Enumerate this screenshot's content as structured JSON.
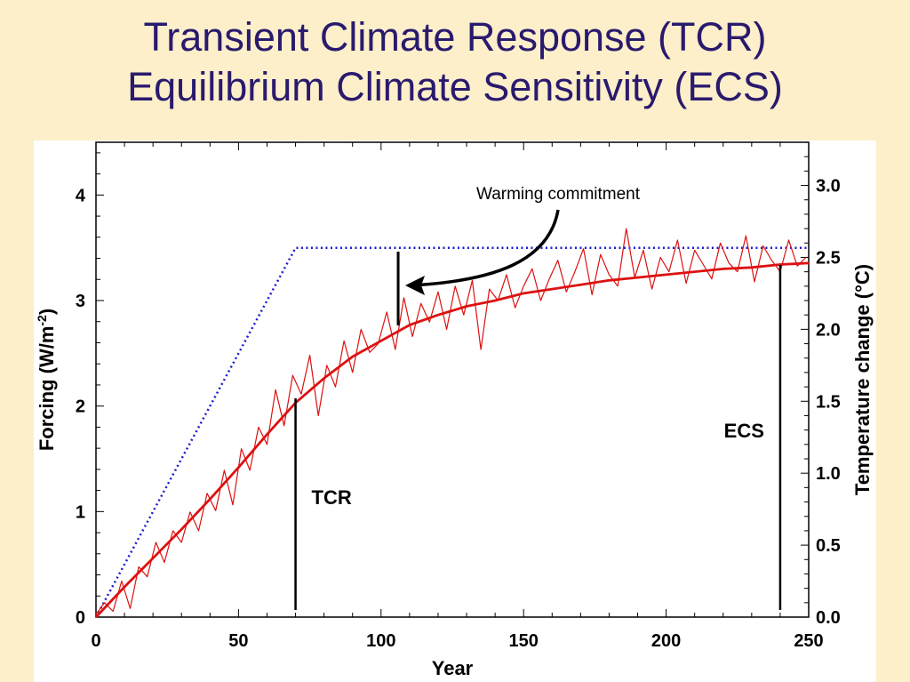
{
  "slide": {
    "title_line1": "Transient Climate Response (TCR)",
    "title_line2": "Equilibrium Climate Sensitivity (ECS)"
  },
  "chart_data": {
    "type": "line",
    "xlabel": "Year",
    "ylabel_left": "Forcing (W/m",
    "ylabel_left_sup": "-2",
    "ylabel_left_end": ")",
    "ylabel_right": "Temperature change (°C)",
    "xlim": [
      0,
      250
    ],
    "ylim_left": [
      0,
      4.5
    ],
    "ylim_right": [
      0,
      3.3
    ],
    "x_ticks": [
      "0",
      "50",
      "100",
      "150",
      "200",
      "250"
    ],
    "y_left_ticks": [
      "0",
      "1",
      "2",
      "3",
      "4"
    ],
    "y_right_ticks": [
      "0.0",
      "0.5",
      "1.0",
      "1.5",
      "2.0",
      "2.5",
      "3.0"
    ],
    "grid": false,
    "series": [
      {
        "style": "dotted",
        "color": "#1a1acc",
        "axis": "left",
        "x": [
          0,
          70,
          250
        ],
        "y": [
          0,
          3.5,
          3.5
        ]
      },
      {
        "style": "solid-thick",
        "color": "#dd1111",
        "axis": "right",
        "x": [
          0,
          10,
          20,
          30,
          40,
          50,
          60,
          70,
          80,
          90,
          100,
          110,
          120,
          130,
          140,
          150,
          160,
          170,
          180,
          190,
          200,
          210,
          220,
          230,
          240,
          250
        ],
        "y": [
          0.0,
          0.21,
          0.41,
          0.61,
          0.82,
          1.04,
          1.27,
          1.49,
          1.66,
          1.81,
          1.92,
          2.03,
          2.1,
          2.16,
          2.2,
          2.25,
          2.28,
          2.31,
          2.34,
          2.36,
          2.38,
          2.4,
          2.42,
          2.43,
          2.45,
          2.46
        ]
      },
      {
        "style": "solid-thin-noisy",
        "color": "#dd1111",
        "axis": "right",
        "x": [
          0,
          3,
          6,
          9,
          12,
          15,
          18,
          21,
          24,
          27,
          30,
          33,
          36,
          39,
          42,
          45,
          48,
          51,
          54,
          57,
          60,
          63,
          66,
          69,
          72,
          75,
          78,
          81,
          84,
          87,
          90,
          93,
          96,
          99,
          102,
          105,
          108,
          111,
          114,
          117,
          120,
          123,
          126,
          129,
          132,
          135,
          138,
          141,
          144,
          147,
          150,
          153,
          156,
          159,
          162,
          165,
          168,
          171,
          174,
          177,
          180,
          183,
          186,
          189,
          192,
          195,
          198,
          201,
          204,
          207,
          210,
          213,
          216,
          219,
          222,
          225,
          228,
          231,
          234,
          237,
          240,
          243,
          246,
          249
        ],
        "y": [
          0.02,
          0.1,
          0.04,
          0.25,
          0.06,
          0.35,
          0.28,
          0.52,
          0.38,
          0.6,
          0.52,
          0.73,
          0.6,
          0.86,
          0.74,
          1.02,
          0.78,
          1.17,
          1.02,
          1.32,
          1.2,
          1.58,
          1.33,
          1.68,
          1.55,
          1.82,
          1.4,
          1.75,
          1.6,
          1.92,
          1.7,
          2.0,
          1.84,
          1.9,
          2.12,
          1.86,
          2.22,
          1.95,
          2.18,
          2.05,
          2.26,
          2.0,
          2.3,
          2.1,
          2.34,
          1.86,
          2.28,
          2.2,
          2.38,
          2.15,
          2.3,
          2.42,
          2.2,
          2.35,
          2.48,
          2.26,
          2.4,
          2.56,
          2.24,
          2.52,
          2.38,
          2.3,
          2.7,
          2.36,
          2.55,
          2.28,
          2.5,
          2.4,
          2.62,
          2.32,
          2.55,
          2.45,
          2.35,
          2.6,
          2.46,
          2.4,
          2.65,
          2.33,
          2.58,
          2.48,
          2.4,
          2.62,
          2.44,
          2.5
        ]
      }
    ],
    "annotations": {
      "tcr_label": "TCR",
      "ecs_label": "ECS",
      "commitment_label": "Warming commitment",
      "tcr_x": 70,
      "ecs_x": 240,
      "commitment_x": 106
    }
  }
}
